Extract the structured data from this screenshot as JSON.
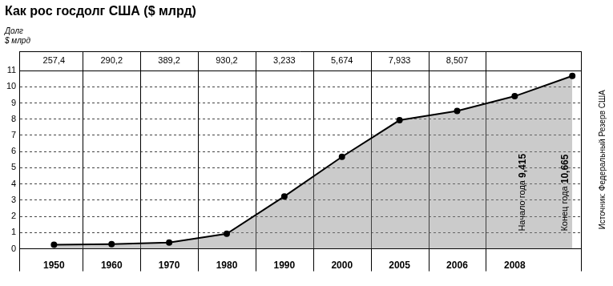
{
  "chart_data": {
    "type": "line",
    "title": "Как рос госдолг США ($ млрд)",
    "y_label": "Долг $ млрд",
    "source": "Источник: Федеральный Резерв США",
    "categories": [
      "1950",
      "1960",
      "1970",
      "1980",
      "1990",
      "2000",
      "2005",
      "2006",
      "2008",
      null
    ],
    "values": [
      0.2574,
      0.2902,
      0.3892,
      0.9302,
      3.233,
      5.674,
      7.933,
      8.507,
      9.415,
      10.665
    ],
    "value_labels": [
      "257,4",
      "290,2",
      "389,2",
      "930,2",
      "3,233",
      "5,674",
      "7,933",
      "8,507",
      "9,415",
      "10,665"
    ],
    "annotations": [
      null,
      null,
      null,
      null,
      null,
      null,
      null,
      null,
      "Начало года",
      "Конец года"
    ],
    "color": "#000000",
    "marker": "circle",
    "ylim": [
      0,
      11
    ],
    "yticks": [
      0,
      1,
      2,
      3,
      4,
      5,
      6,
      7,
      8,
      9,
      10,
      11
    ],
    "grid": true,
    "data_labels": true
  }
}
